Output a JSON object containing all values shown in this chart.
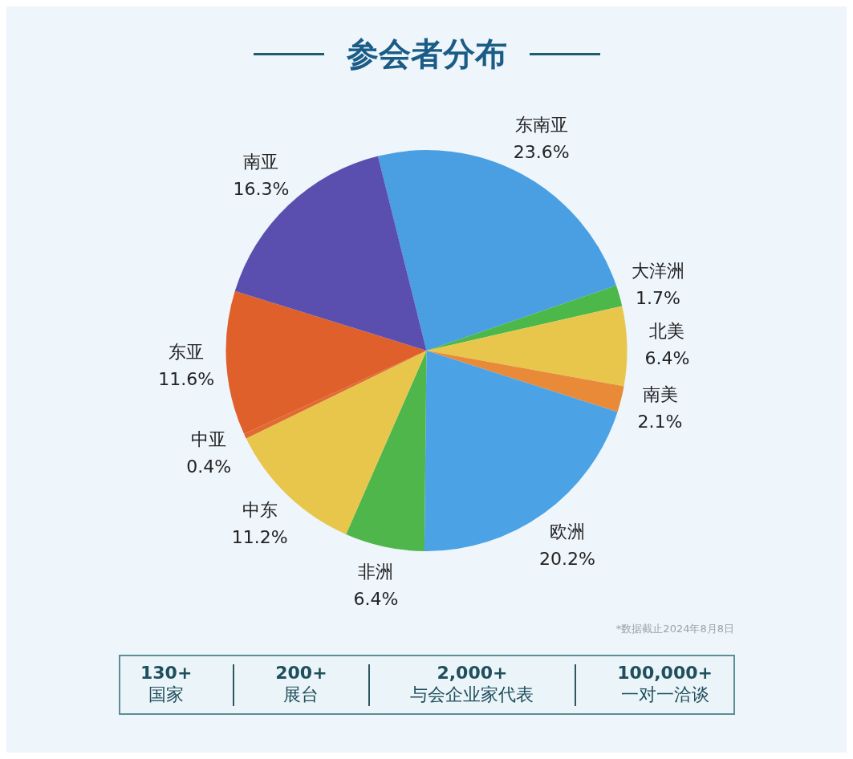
{
  "chart_data": [
    {
      "type": "pie",
      "title": "参会者分布",
      "categories": [
        "东南亚",
        "大洋洲",
        "北美",
        "南美",
        "欧洲",
        "非洲",
        "中东",
        "中亚",
        "东亚",
        "南亚"
      ],
      "values": [
        23.6,
        1.7,
        6.4,
        2.1,
        20.2,
        6.4,
        11.2,
        0.4,
        11.6,
        16.3
      ],
      "value_labels": [
        "23.6%",
        "1.7%",
        "6.4%",
        "2.1%",
        "20.2%",
        "6.4%",
        "11.2%",
        "0.4%",
        "11.6%",
        "16.3%"
      ],
      "colors": [
        "#4a9fe2",
        "#4cb84a",
        "#e8c64c",
        "#e98a38",
        "#4ba3e6",
        "#4fb64c",
        "#e8c64c",
        "#e06a30",
        "#e0602c",
        "#5a4fae"
      ],
      "annotations": [
        "*数据截止2024年8月8日"
      ],
      "legend": false
    },
    {
      "type": "other",
      "annotations": [
        "130+",
        "国家",
        "200+",
        "展台",
        "2,000+",
        "与会企业家代表",
        "100,000+",
        "一对一洽谈"
      ]
    }
  ]
}
